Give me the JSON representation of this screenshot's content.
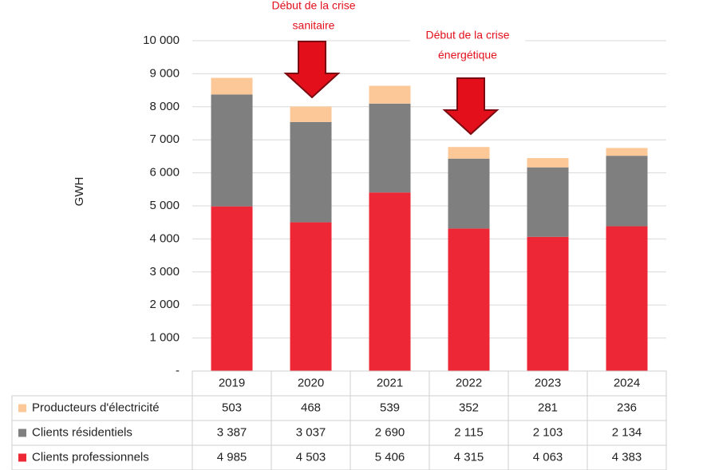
{
  "chart_data": {
    "type": "bar",
    "stacked": true,
    "y_axis_label": "GWH",
    "categories": [
      "2019",
      "2020",
      "2021",
      "2022",
      "2023",
      "2024"
    ],
    "series": [
      {
        "name": "Producteurs d'électricité",
        "color": "#fdc897",
        "values": [
          503,
          468,
          539,
          352,
          281,
          236
        ],
        "value_labels": [
          "503",
          "468",
          "539",
          "352",
          "281",
          "236"
        ]
      },
      {
        "name": "Clients résidentiels",
        "color": "#7f7f7f",
        "values": [
          3387,
          3037,
          2690,
          2115,
          2103,
          2134
        ],
        "value_labels": [
          "3 387",
          "3 037",
          "2 690",
          "2 115",
          "2 103",
          "2 134"
        ]
      },
      {
        "name": "Clients professionnels",
        "color": "#ee2737",
        "values": [
          4985,
          4503,
          5406,
          4315,
          4063,
          4383
        ],
        "value_labels": [
          "4 985",
          "4 503",
          "5 406",
          "4 315",
          "4 063",
          "4 383"
        ]
      }
    ],
    "ylim": [
      0,
      10000
    ],
    "yticks": [
      {
        "value": 0,
        "label": "-"
      },
      {
        "value": 1000,
        "label": "1 000"
      },
      {
        "value": 2000,
        "label": "2 000"
      },
      {
        "value": 3000,
        "label": "3 000"
      },
      {
        "value": 4000,
        "label": "4 000"
      },
      {
        "value": 5000,
        "label": "5 000"
      },
      {
        "value": 6000,
        "label": "6 000"
      },
      {
        "value": 7000,
        "label": "7 000"
      },
      {
        "value": 8000,
        "label": "8 000"
      },
      {
        "value": 9000,
        "label": "9 000"
      },
      {
        "value": 10000,
        "label": "10 000"
      }
    ],
    "grid": true,
    "annotations": [
      {
        "lines": [
          "Début de la crise",
          "sanitaire"
        ]
      },
      {
        "lines": [
          "Début de la crise",
          "énergétique"
        ]
      }
    ]
  }
}
